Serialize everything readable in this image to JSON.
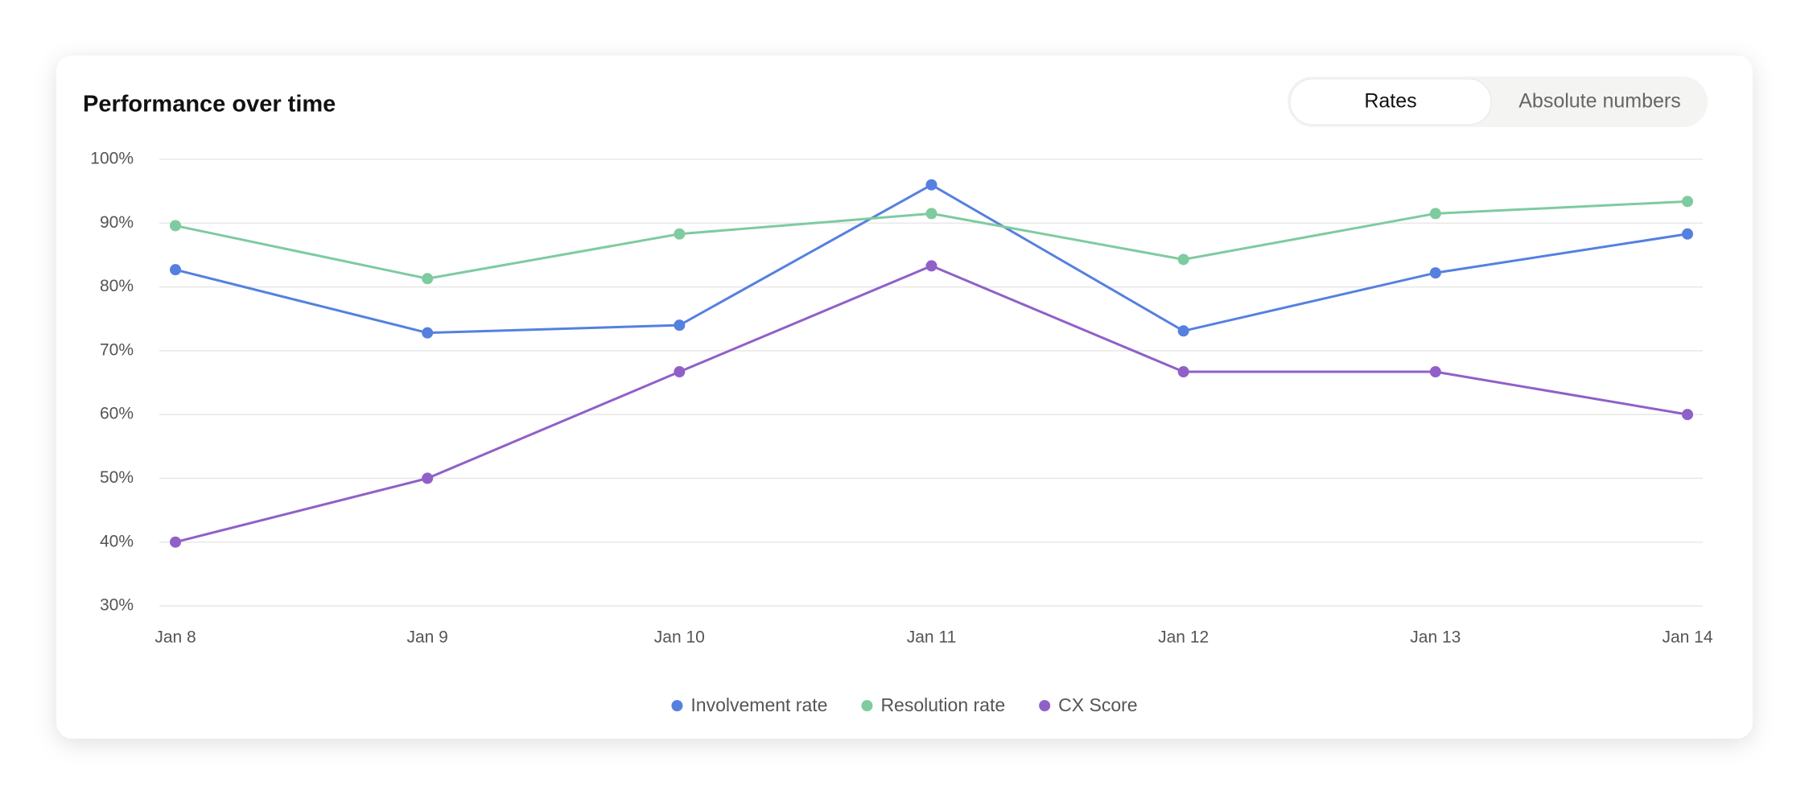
{
  "toggle": {
    "options": [
      "Rates",
      "Absolute numbers"
    ],
    "active": 0
  },
  "chart_data": {
    "type": "line",
    "title": "Performance over time",
    "categories": [
      "Jan 8",
      "Jan 9",
      "Jan 10",
      "Jan 11",
      "Jan 12",
      "Jan 13",
      "Jan 14"
    ],
    "series": [
      {
        "name": "Involvement rate",
        "color": "#5580e0",
        "values": [
          82.7,
          72.8,
          74,
          96,
          73.1,
          82.2,
          88.3
        ]
      },
      {
        "name": "Resolution rate",
        "color": "#7ecb9f",
        "values": [
          89.6,
          81.3,
          88.3,
          91.5,
          84.3,
          91.5,
          93.4
        ]
      },
      {
        "name": "CX Score",
        "color": "#9060c8",
        "values": [
          40,
          50,
          66.7,
          83.3,
          66.7,
          66.7,
          60
        ]
      }
    ],
    "ylim": [
      30,
      100
    ],
    "yticks": [
      {
        "value": 30,
        "label": "30%"
      },
      {
        "value": 40,
        "label": "40%"
      },
      {
        "value": 50,
        "label": "50%"
      },
      {
        "value": 60,
        "label": "60%"
      },
      {
        "value": 70,
        "label": "70%"
      },
      {
        "value": 80,
        "label": "80%"
      },
      {
        "value": 90,
        "label": "90%"
      },
      {
        "value": 100,
        "label": "100%"
      }
    ],
    "grid": true,
    "legend": "bottom"
  }
}
